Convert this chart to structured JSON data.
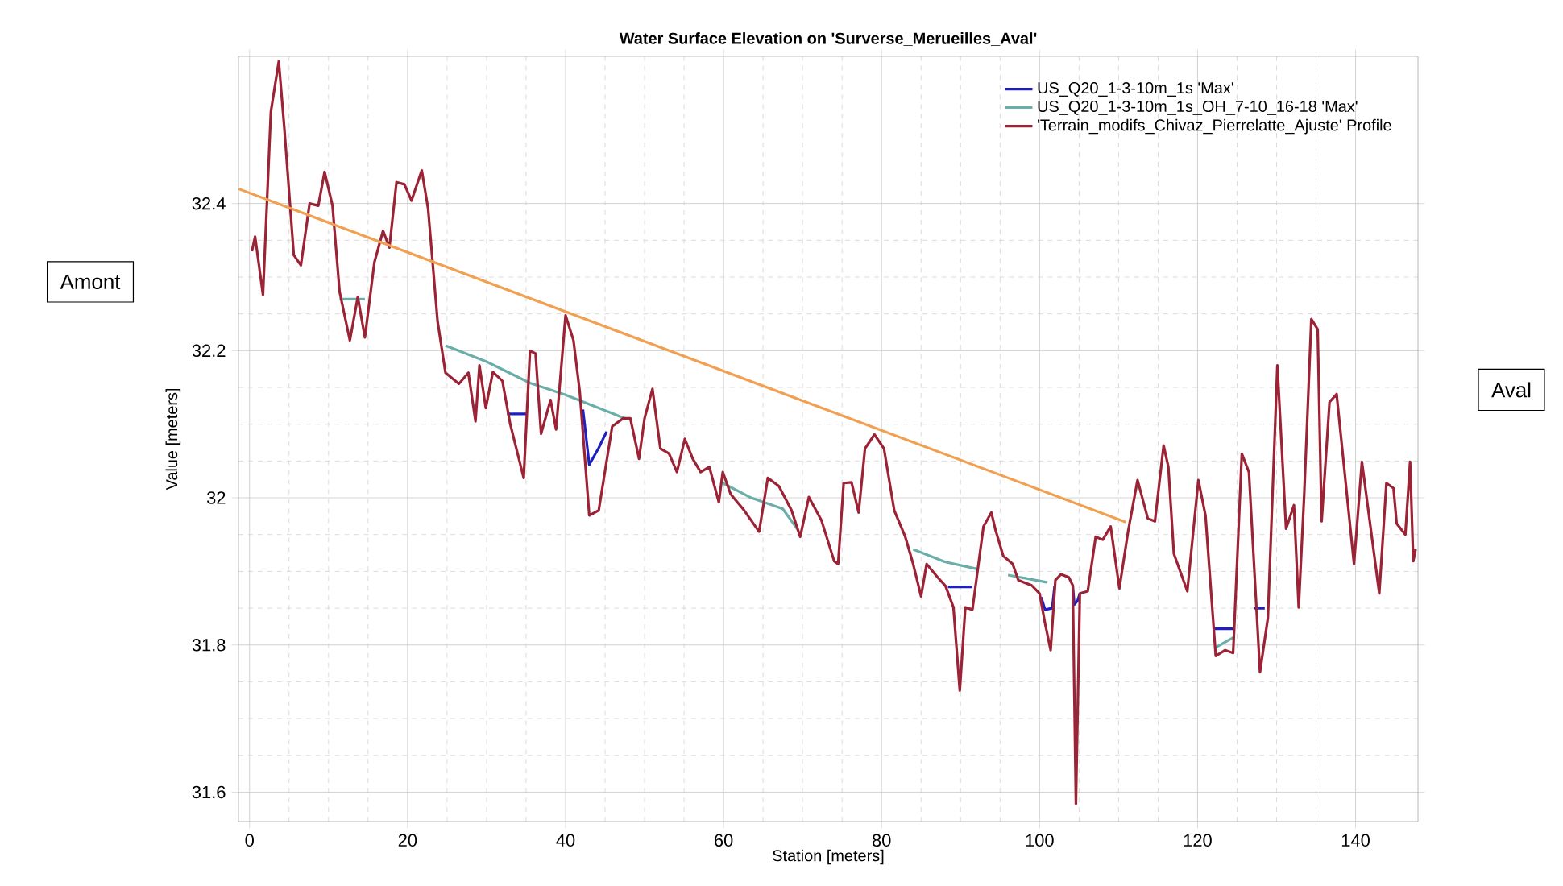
{
  "chart_data": {
    "type": "line",
    "title": "Water Surface Elevation on 'Surverse_Merueilles_Aval'",
    "xlabel": "Station [meters]",
    "ylabel": "Value [meters]",
    "xlim": [
      -1.4,
      147.9
    ],
    "ylim": [
      31.56,
      32.6
    ],
    "xticks": [
      0,
      20,
      40,
      60,
      80,
      100,
      120,
      140
    ],
    "yticks": [
      31.6,
      31.8,
      32,
      32.2,
      32.4
    ],
    "grid": true,
    "legend": "top right",
    "marker": "none",
    "line_style": "solid",
    "annotations": [
      "Amont",
      "Aval"
    ],
    "series": [
      {
        "name": "US_Q20_1-3-10m_1s 'Max'",
        "color": "#1f1fbf",
        "x": [
          32.6,
          35.2,
          38,
          42.2,
          43.0,
          44.2,
          45.2,
          60,
          88.4,
          91.5,
          95,
          100.2,
          100.7,
          101.6,
          101.9,
          103,
          104.2,
          104.4,
          104.8,
          105.1,
          110,
          122.2,
          124.5,
          126,
          127.2,
          128.5
        ],
        "values": [
          32.114,
          32.114,
          null,
          32.12,
          32.045,
          32.068,
          32.09,
          null,
          31.879,
          31.879,
          null,
          31.865,
          31.848,
          31.85,
          31.88,
          null,
          31.88,
          31.855,
          31.86,
          31.87,
          null,
          31.822,
          31.822,
          null,
          31.85,
          31.85
        ]
      },
      {
        "name": "US_Q20_1-3-10m_1s_OH_7-10_16-18 'Max'",
        "color": "#6aaeaa",
        "x": [
          11.4,
          14.6,
          20,
          24.8,
          30,
          35.5,
          40,
          47.5,
          55,
          59.9,
          63.5,
          67.5,
          69.5,
          75,
          84.0,
          88,
          92.2,
          94,
          96,
          101,
          110,
          122.2,
          124.5
        ],
        "values": [
          32.27,
          32.27,
          null,
          32.207,
          32.185,
          32.156,
          32.14,
          32.108,
          null,
          32.02,
          32.0,
          31.985,
          31.955,
          null,
          31.93,
          31.913,
          31.903,
          null,
          31.895,
          31.885,
          null,
          31.796,
          31.81
        ]
      },
      {
        "name": "'Terrain_modifs_Chivaz_Pierrelatte_Ajuste' Profile",
        "color": "#9b2335",
        "x": [
          0.3,
          0.7,
          1.7,
          2.7,
          3.7,
          4.4,
          5.6,
          6.5,
          7.6,
          8.7,
          9.5,
          10.5,
          11.4,
          12.7,
          13.7,
          14.6,
          15.8,
          16.9,
          17.7,
          18.6,
          19.6,
          20.5,
          21.8,
          22.6,
          23.8,
          24.8,
          26.5,
          27.7,
          28.6,
          29.1,
          29.9,
          30.8,
          32.0,
          33.0,
          34.7,
          35.5,
          36.2,
          36.9,
          38.1,
          38.8,
          40.0,
          41.0,
          41.8,
          43.0,
          44.2,
          45.9,
          47.3,
          48.2,
          49.3,
          50.0,
          51.0,
          52.0,
          53.1,
          54.1,
          55.1,
          56.1,
          57.1,
          58.2,
          59.4,
          59.9,
          60.9,
          62.6,
          64.5,
          65.6,
          67.0,
          68.6,
          69.7,
          70.8,
          72.4,
          74.0,
          74.5,
          75.2,
          76.2,
          77.1,
          77.9,
          79.1,
          80.3,
          81.6,
          83.0,
          84.0,
          85.0,
          85.7,
          87.1,
          88.1,
          89.1,
          89.9,
          90.6,
          91.5,
          92.9,
          93.9,
          94.4,
          95.4,
          96.6,
          97.3,
          99.0,
          100.0,
          100.7,
          101.4,
          102.0,
          102.7,
          103.7,
          104.2,
          104.6,
          105.1,
          106.1,
          107.1,
          108.0,
          109.0,
          110.1,
          111.2,
          112.4,
          113.7,
          114.6,
          115.7,
          116.3,
          117.0,
          118.7,
          120.1,
          121.0,
          122.3,
          123.5,
          124.5,
          125.6,
          126.5,
          127.9,
          128.9,
          130.1,
          131.2,
          132.2,
          132.8,
          133.5,
          134.4,
          135.2,
          135.7,
          136.7,
          137.6,
          139.8,
          140.8,
          143.0,
          143.9,
          144.8,
          145.2,
          146.3,
          146.9,
          147.3,
          147.6
        ],
        "values": [
          32.335,
          32.355,
          32.276,
          32.525,
          32.593,
          32.503,
          32.33,
          32.316,
          32.4,
          32.397,
          32.443,
          32.397,
          32.28,
          32.214,
          32.273,
          32.218,
          32.32,
          32.363,
          32.34,
          32.429,
          32.426,
          32.404,
          32.445,
          32.393,
          32.24,
          32.17,
          32.155,
          32.17,
          32.104,
          32.18,
          32.122,
          32.171,
          32.159,
          32.1,
          32.027,
          32.2,
          32.196,
          32.087,
          32.133,
          32.093,
          32.248,
          32.214,
          32.144,
          31.976,
          31.983,
          32.097,
          32.108,
          32.108,
          32.053,
          32.108,
          32.148,
          32.067,
          32.06,
          32.035,
          32.08,
          32.053,
          32.035,
          32.042,
          31.994,
          32.035,
          32.005,
          31.983,
          31.954,
          32.027,
          32.016,
          31.983,
          31.947,
          32.001,
          31.969,
          31.914,
          31.91,
          32.02,
          32.021,
          31.98,
          32.067,
          32.086,
          32.067,
          31.983,
          31.947,
          31.91,
          31.866,
          31.91,
          31.892,
          31.88,
          31.851,
          31.738,
          31.851,
          31.848,
          31.961,
          31.98,
          31.957,
          31.921,
          31.91,
          31.888,
          31.881,
          31.87,
          31.829,
          31.793,
          31.888,
          31.896,
          31.892,
          31.881,
          31.584,
          31.87,
          31.873,
          31.947,
          31.943,
          31.961,
          31.877,
          31.954,
          32.024,
          31.972,
          31.968,
          32.071,
          32.042,
          31.924,
          31.873,
          32.024,
          31.976,
          31.785,
          31.793,
          31.789,
          32.06,
          32.035,
          31.763,
          31.837,
          32.18,
          31.958,
          31.99,
          31.851,
          32.005,
          32.243,
          32.229,
          31.968,
          32.13,
          32.141,
          31.91,
          32.049,
          31.87,
          32.02,
          32.013,
          31.965,
          31.95,
          32.049,
          31.914,
          31.93
        ]
      },
      {
        "color": "#f0a050",
        "x": [
          -1.4,
          110.9
        ],
        "values": [
          32.42,
          31.967
        ]
      }
    ]
  }
}
